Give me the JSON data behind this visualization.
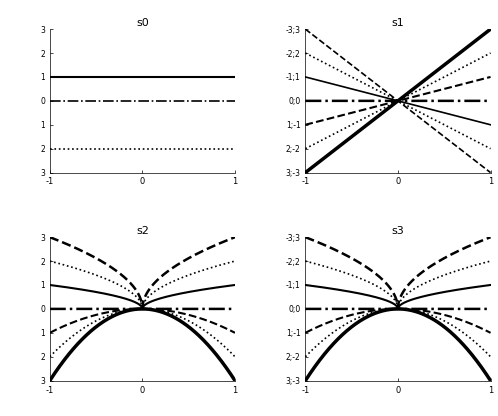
{
  "titles": [
    "s0",
    "s1",
    "s2",
    "s3"
  ],
  "xlim": [
    -1,
    1
  ],
  "ylim": [
    -3,
    3
  ],
  "yticks": [
    -3,
    -2,
    -1,
    0,
    1,
    2,
    3
  ],
  "xticks": [
    -1,
    0,
    1
  ],
  "s0_ytick_labels": [
    "3",
    "2",
    "1",
    "0",
    "1",
    "2",
    "3"
  ],
  "s1_ytick_labels": [
    "3;-3",
    "2;-2",
    "1;-1",
    "0;0",
    "-1;1",
    "-2;2",
    "-3;3"
  ],
  "s2_ytick_labels": [
    "3",
    "2",
    "1",
    "0",
    "1",
    "2",
    "3"
  ],
  "s3_ytick_labels": [
    "3;-3",
    "2;-2",
    "1;-1",
    "0;0",
    "-1;1",
    "-2;2",
    "-3;3"
  ],
  "s0_lines": [
    {
      "y": 1,
      "style": "-",
      "lw": 1.5
    },
    {
      "y": 0,
      "style": "-.",
      "lw": 1.2
    },
    {
      "y": -2,
      "style": ":",
      "lw": 1.2
    }
  ],
  "s1_configs": [
    {
      "slope": 3,
      "style": "-",
      "lw": 2.5
    },
    {
      "slope": 2,
      "style": ":",
      "lw": 1.2
    },
    {
      "slope": 1,
      "style": "--",
      "lw": 1.5
    },
    {
      "slope": 0,
      "style": "-.",
      "lw": 1.8
    },
    {
      "slope": -1,
      "style": "-",
      "lw": 1.2
    },
    {
      "slope": -2,
      "style": ":",
      "lw": 1.2
    },
    {
      "slope": -3,
      "style": "--",
      "lw": 1.2
    }
  ],
  "s2_configs": [
    {
      "scale": 3,
      "sign": 1,
      "power": 0.5,
      "style": "--",
      "lw": 1.8
    },
    {
      "scale": 2,
      "sign": 1,
      "power": 0.5,
      "style": ":",
      "lw": 1.2
    },
    {
      "scale": 1,
      "sign": 1,
      "power": 0.5,
      "style": "-",
      "lw": 1.5
    },
    {
      "scale": 0,
      "sign": 1,
      "power": 1,
      "style": "-.",
      "lw": 1.8
    },
    {
      "scale": 1,
      "sign": -1,
      "power": 2,
      "style": "--",
      "lw": 1.5
    },
    {
      "scale": 2,
      "sign": -1,
      "power": 2,
      "style": ":",
      "lw": 1.2
    },
    {
      "scale": 3,
      "sign": -1,
      "power": 2,
      "style": "-",
      "lw": 2.5
    }
  ],
  "s3_configs": [
    {
      "scale": 3,
      "sign": 1,
      "power": 0.5,
      "style": "--",
      "lw": 1.8
    },
    {
      "scale": 2,
      "sign": 1,
      "power": 0.5,
      "style": ":",
      "lw": 1.2
    },
    {
      "scale": 1,
      "sign": 1,
      "power": 0.5,
      "style": "-",
      "lw": 1.5
    },
    {
      "scale": 0,
      "sign": 1,
      "power": 1,
      "style": "-.",
      "lw": 1.8
    },
    {
      "scale": 1,
      "sign": -1,
      "power": 2,
      "style": "--",
      "lw": 1.5
    },
    {
      "scale": 2,
      "sign": -1,
      "power": 2,
      "style": ":",
      "lw": 1.2
    },
    {
      "scale": 3,
      "sign": -1,
      "power": 2,
      "style": "-",
      "lw": 2.5
    }
  ]
}
